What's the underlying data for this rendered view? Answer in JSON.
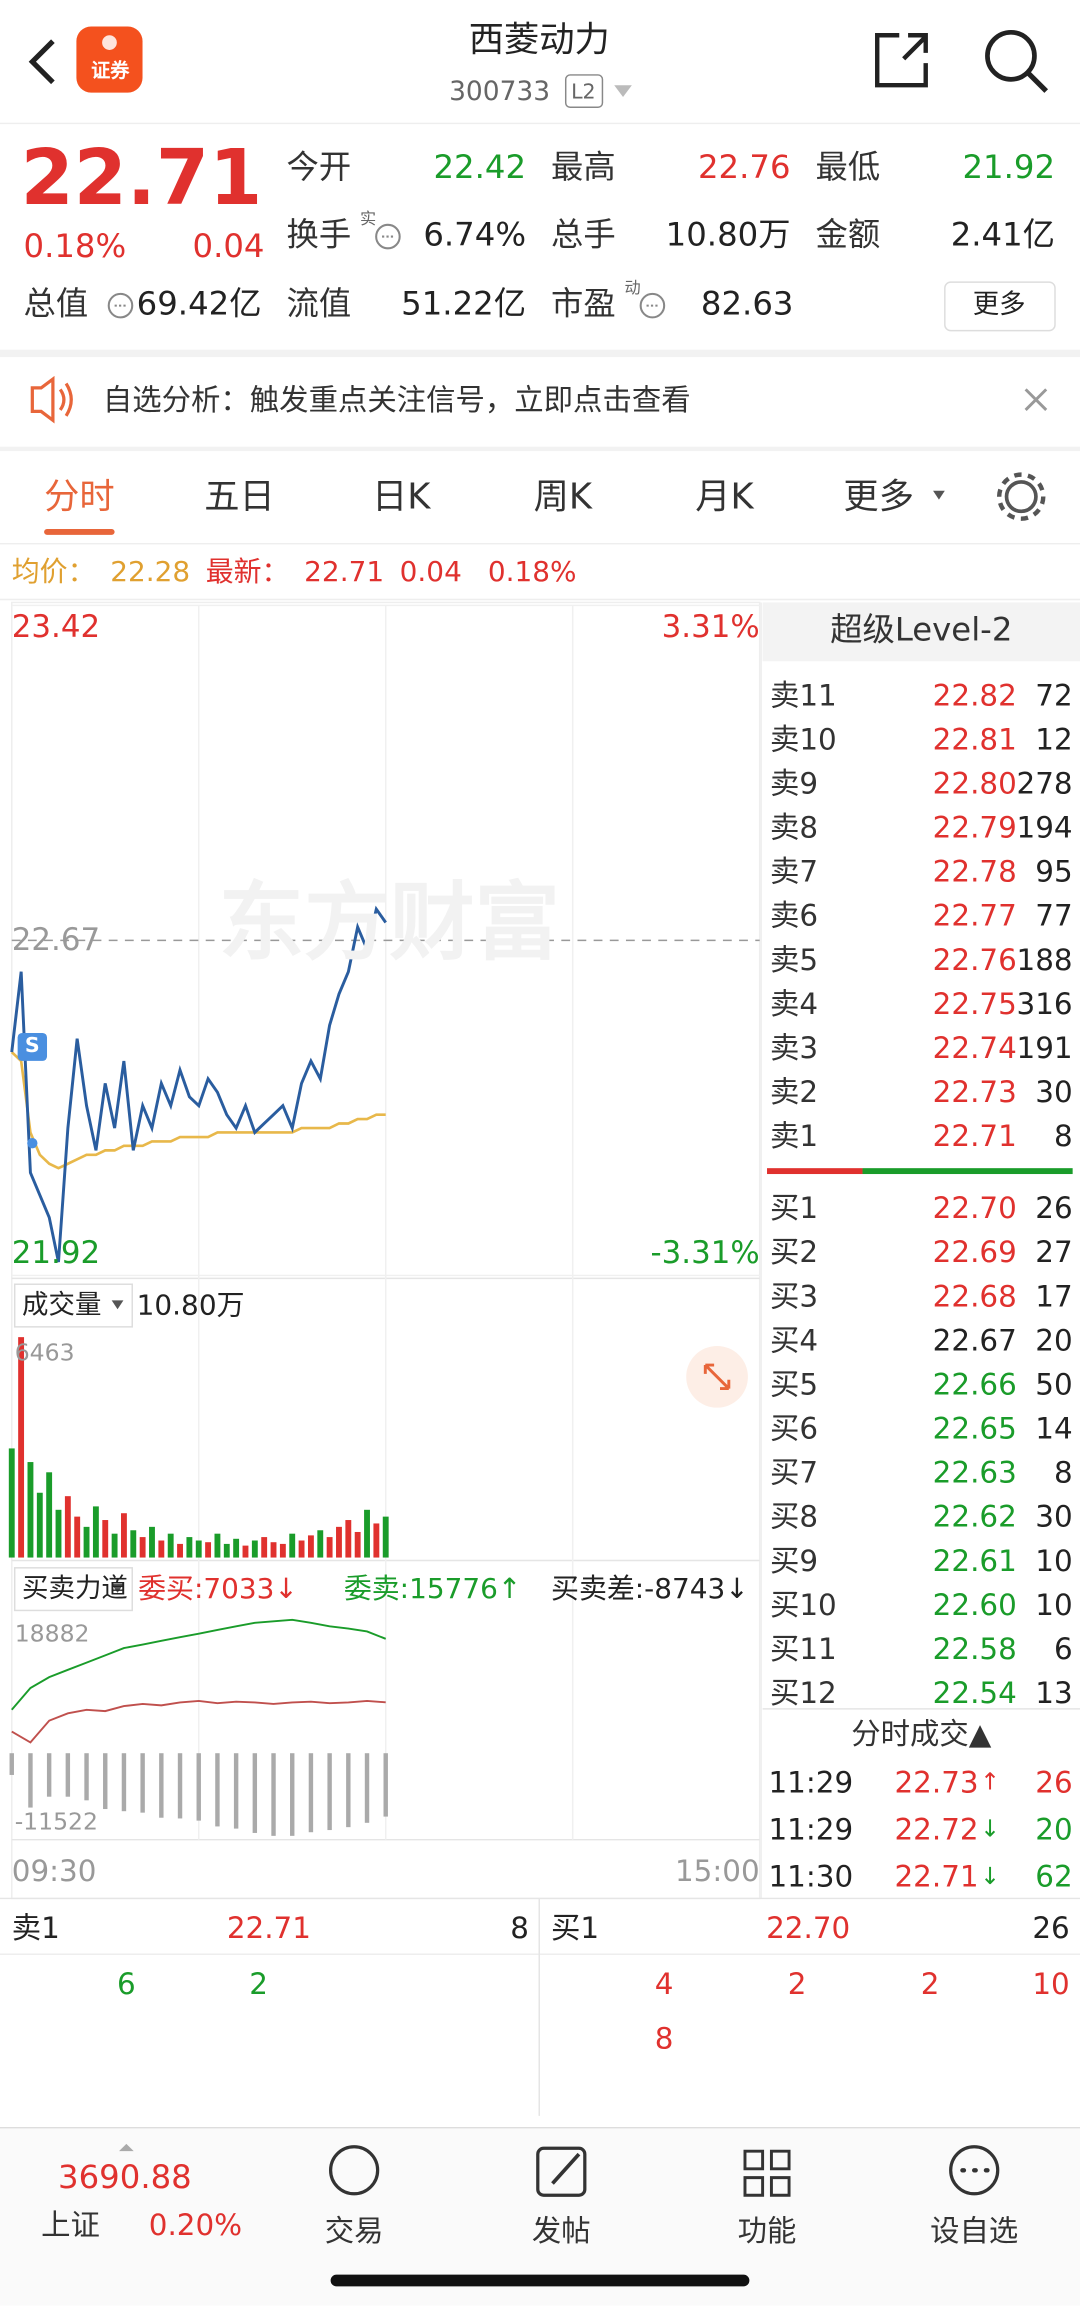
{
  "header": {
    "logo": "证券",
    "title": "西菱动力",
    "code": "300733",
    "badge": "L2"
  },
  "quote": {
    "price": "22.71",
    "change_pct": "0.18%",
    "change": "0.04",
    "more": "更多",
    "fields": [
      {
        "label": "今开",
        "value": "22.42"
      },
      {
        "label": "最高",
        "value": "22.76"
      },
      {
        "label": "最低",
        "value": "21.92"
      },
      {
        "label": "换手",
        "sup": "实",
        "value": "6.74%"
      },
      {
        "label": "总手",
        "value": "10.80万"
      },
      {
        "label": "金额",
        "value": "2.41亿"
      },
      {
        "label": "总值",
        "value": "69.42亿"
      },
      {
        "label": "流值",
        "value": "51.22亿"
      },
      {
        "label": "市盈",
        "sup": "动",
        "value": "82.63"
      }
    ]
  },
  "banner": {
    "text": "自选分析：触发重点关注信号，立即点击查看"
  },
  "tabs": [
    "分时",
    "五日",
    "日K",
    "周K",
    "月K",
    "更多"
  ],
  "info": {
    "avg_label": "均价：",
    "avg": "22.28",
    "latest_label": "最新：",
    "latest": "22.71",
    "change": "0.04",
    "pct": "0.18%"
  },
  "chart": {
    "watermark": "东方财富",
    "ylim": [
      21.92,
      23.42
    ],
    "yticks": [
      21.92,
      22.67,
      23.42
    ],
    "pct_top": "3.31%",
    "pct_bottom": "-3.31%",
    "time_start": "09:30",
    "time_end": "15:00",
    "minutes": [
      0,
      3,
      6,
      9,
      12,
      15,
      18,
      21,
      24,
      27,
      30,
      33,
      36,
      39,
      42,
      45,
      48,
      51,
      54,
      57,
      60,
      63,
      66,
      69,
      72,
      75,
      78,
      81,
      84,
      87,
      90,
      93,
      96,
      99,
      102,
      105,
      108,
      111,
      114,
      117,
      120
    ],
    "price": [
      22.42,
      22.6,
      22.15,
      22.1,
      22.05,
      21.95,
      22.25,
      22.45,
      22.3,
      22.2,
      22.35,
      22.25,
      22.4,
      22.2,
      22.3,
      22.25,
      22.35,
      22.3,
      22.38,
      22.32,
      22.3,
      22.36,
      22.33,
      22.28,
      22.25,
      22.3,
      22.24,
      22.26,
      22.28,
      22.3,
      22.25,
      22.35,
      22.4,
      22.36,
      22.48,
      22.55,
      22.6,
      22.7,
      22.65,
      22.74,
      22.71
    ],
    "avg_price": [
      22.42,
      22.4,
      22.24,
      22.19,
      22.17,
      22.16,
      22.17,
      22.18,
      22.19,
      22.19,
      22.2,
      22.2,
      22.21,
      22.21,
      22.21,
      22.22,
      22.22,
      22.22,
      22.23,
      22.23,
      22.23,
      22.23,
      22.24,
      22.24,
      22.24,
      22.24,
      22.24,
      22.24,
      22.24,
      22.24,
      22.24,
      22.25,
      22.25,
      22.25,
      22.25,
      22.26,
      22.26,
      22.27,
      22.27,
      22.28,
      22.28
    ],
    "volume": {
      "label": "成交量",
      "total": "10.80万",
      "ylim": [
        0,
        6463
      ],
      "values": [
        3200,
        6463,
        2800,
        1900,
        2500,
        1400,
        1800,
        1200,
        900,
        1500,
        1100,
        700,
        1300,
        800,
        600,
        900,
        500,
        700,
        400,
        600,
        500,
        450,
        700,
        400,
        550,
        350,
        500,
        600,
        450,
        400,
        700,
        500,
        650,
        800,
        600,
        900,
        1100,
        750,
        1400,
        1000,
        1200
      ]
    },
    "flow": {
      "label": "买卖力道",
      "buy_label": "委买:7033↓",
      "sell_label": "委卖:15776↑",
      "diff_label": "买卖差:-8743↓",
      "ylim": [
        -11522,
        18882
      ],
      "minutes": [
        0,
        6,
        12,
        18,
        24,
        30,
        36,
        42,
        48,
        54,
        60,
        66,
        72,
        78,
        84,
        90,
        96,
        102,
        108,
        114,
        120
      ],
      "buy": [
        3000,
        1500,
        4500,
        5500,
        6000,
        5800,
        6500,
        6800,
        6600,
        7000,
        7200,
        6900,
        7100,
        7000,
        6800,
        7000,
        7100,
        6900,
        7000,
        7200,
        7033
      ],
      "sell": [
        6000,
        9000,
        10500,
        11500,
        12500,
        13500,
        14500,
        15000,
        15500,
        16000,
        16500,
        17000,
        17500,
        18000,
        18200,
        18400,
        18000,
        17500,
        17200,
        16800,
        15776
      ],
      "diff": [
        -3000,
        -7500,
        -6000,
        -6000,
        -6500,
        -7700,
        -8000,
        -8200,
        -8900,
        -9000,
        -9300,
        -10100,
        -10400,
        -11000,
        -11400,
        -11400,
        -10900,
        -10600,
        -10200,
        -9600,
        -8743
      ]
    }
  },
  "orderbook": {
    "title": "超级Level-2",
    "asks": [
      {
        "label": "卖11",
        "price": "22.82",
        "vol": "72"
      },
      {
        "label": "卖10",
        "price": "22.81",
        "vol": "12"
      },
      {
        "label": "卖9",
        "price": "22.80",
        "vol": "278"
      },
      {
        "label": "卖8",
        "price": "22.79",
        "vol": "194"
      },
      {
        "label": "卖7",
        "price": "22.78",
        "vol": "95"
      },
      {
        "label": "卖6",
        "price": "22.77",
        "vol": "77"
      },
      {
        "label": "卖5",
        "price": "22.76",
        "vol": "188"
      },
      {
        "label": "卖4",
        "price": "22.75",
        "vol": "316"
      },
      {
        "label": "卖3",
        "price": "22.74",
        "vol": "191"
      },
      {
        "label": "卖2",
        "price": "22.73",
        "vol": "30"
      },
      {
        "label": "卖1",
        "price": "22.71",
        "vol": "8"
      }
    ],
    "bids": [
      {
        "label": "买1",
        "price": "22.70",
        "vol": "26"
      },
      {
        "label": "买2",
        "price": "22.69",
        "vol": "27"
      },
      {
        "label": "买3",
        "price": "22.68",
        "vol": "17"
      },
      {
        "label": "买4",
        "price": "22.67",
        "vol": "20"
      },
      {
        "label": "买5",
        "price": "22.66",
        "vol": "50"
      },
      {
        "label": "买6",
        "price": "22.65",
        "vol": "14"
      },
      {
        "label": "买7",
        "price": "22.63",
        "vol": "8"
      },
      {
        "label": "买8",
        "price": "22.62",
        "vol": "30"
      },
      {
        "label": "买9",
        "price": "22.61",
        "vol": "10"
      },
      {
        "label": "买10",
        "price": "22.60",
        "vol": "10"
      },
      {
        "label": "买11",
        "price": "22.58",
        "vol": "6"
      },
      {
        "label": "买12",
        "price": "22.54",
        "vol": "13"
      }
    ],
    "trades_title": "分时成交▲",
    "trades": [
      {
        "time": "11:29",
        "price": "22.73",
        "dir": "↑",
        "vol": "26"
      },
      {
        "time": "11:29",
        "price": "22.72",
        "dir": "↓",
        "vol": "20"
      },
      {
        "time": "11:30",
        "price": "22.71",
        "dir": "↓",
        "vol": "62"
      }
    ]
  },
  "queue": {
    "sell": {
      "label": "卖1",
      "price": "22.71",
      "vol": "8",
      "orders": [
        "6",
        "2"
      ]
    },
    "buy": {
      "label": "买1",
      "price": "22.70",
      "vol": "26",
      "orders": [
        "4",
        "2",
        "2",
        "10",
        "8"
      ]
    }
  },
  "nav": {
    "index": {
      "price": "3690.88",
      "name": "上证",
      "pct": "0.20%"
    },
    "items": [
      "交易",
      "发帖",
      "功能",
      "设自选"
    ]
  }
}
